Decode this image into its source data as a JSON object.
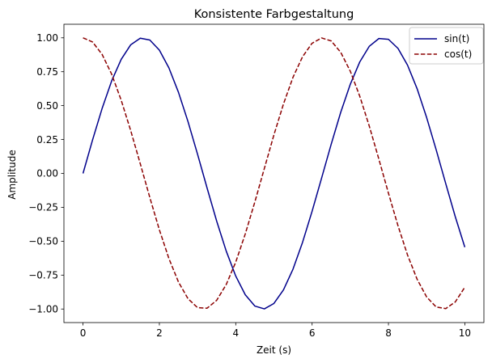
{
  "chart_data": {
    "type": "line",
    "title": "Konsistente Farbgestaltung",
    "xlabel": "Zeit (s)",
    "ylabel": "Amplitude",
    "xlim": [
      -0.5,
      10.5
    ],
    "ylim": [
      -1.1,
      1.1
    ],
    "xticks": [
      0,
      2,
      4,
      6,
      8,
      10
    ],
    "xtick_labels": [
      "0",
      "2",
      "4",
      "6",
      "8",
      "10"
    ],
    "yticks": [
      -1.0,
      -0.75,
      -0.5,
      -0.25,
      0.0,
      0.25,
      0.5,
      0.75,
      1.0
    ],
    "ytick_labels": [
      "−1.00",
      "−0.75",
      "−0.50",
      "−0.25",
      "0.00",
      "0.25",
      "0.50",
      "0.75",
      "1.00"
    ],
    "grid": false,
    "legend_position": "top-right",
    "series": [
      {
        "name": "sin(t)",
        "color": "#00008b",
        "style": "solid",
        "x": [
          0,
          0.25,
          0.5,
          0.75,
          1,
          1.25,
          1.5,
          1.75,
          2,
          2.25,
          2.5,
          2.75,
          3,
          3.25,
          3.5,
          3.75,
          4,
          4.25,
          4.5,
          4.75,
          5,
          5.25,
          5.5,
          5.75,
          6,
          6.25,
          6.5,
          6.75,
          7,
          7.25,
          7.5,
          7.75,
          8,
          8.25,
          8.5,
          8.75,
          9,
          9.25,
          9.5,
          9.75,
          10
        ],
        "y": [
          0.0,
          0.247,
          0.479,
          0.682,
          0.841,
          0.949,
          0.997,
          0.984,
          0.909,
          0.778,
          0.598,
          0.382,
          0.141,
          -0.108,
          -0.351,
          -0.572,
          -0.757,
          -0.895,
          -0.978,
          -0.999,
          -0.959,
          -0.859,
          -0.706,
          -0.508,
          -0.279,
          -0.033,
          0.215,
          0.451,
          0.657,
          0.823,
          0.938,
          0.995,
          0.989,
          0.922,
          0.798,
          0.625,
          0.412,
          0.174,
          -0.075,
          -0.319,
          -0.544
        ]
      },
      {
        "name": "cos(t)",
        "color": "#8b0000",
        "style": "dashed",
        "x": [
          0,
          0.25,
          0.5,
          0.75,
          1,
          1.25,
          1.5,
          1.75,
          2,
          2.25,
          2.5,
          2.75,
          3,
          3.25,
          3.5,
          3.75,
          4,
          4.25,
          4.5,
          4.75,
          5,
          5.25,
          5.5,
          5.75,
          6,
          6.25,
          6.5,
          6.75,
          7,
          7.25,
          7.5,
          7.75,
          8,
          8.25,
          8.5,
          8.75,
          9,
          9.25,
          9.5,
          9.75,
          10
        ],
        "y": [
          1.0,
          0.969,
          0.878,
          0.732,
          0.54,
          0.315,
          0.071,
          -0.178,
          -0.416,
          -0.628,
          -0.801,
          -0.924,
          -0.99,
          -0.994,
          -0.936,
          -0.82,
          -0.654,
          -0.446,
          -0.211,
          0.037,
          0.284,
          0.512,
          0.709,
          0.861,
          0.96,
          0.999,
          0.977,
          0.893,
          0.754,
          0.568,
          0.347,
          0.104,
          -0.146,
          -0.386,
          -0.602,
          -0.78,
          -0.911,
          -0.985,
          -0.997,
          -0.948,
          -0.839
        ]
      }
    ]
  }
}
